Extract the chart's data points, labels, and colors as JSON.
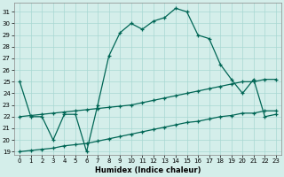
{
  "xlabel": "Humidex (Indice chaleur)",
  "background_color": "#d4eeea",
  "grid_color": "#a8d8d2",
  "line_color": "#006655",
  "xlim": [
    -0.5,
    23.5
  ],
  "ylim": [
    18.7,
    31.8
  ],
  "yticks": [
    19,
    20,
    21,
    22,
    23,
    24,
    25,
    26,
    27,
    28,
    29,
    30,
    31
  ],
  "xticks": [
    0,
    1,
    2,
    3,
    4,
    5,
    6,
    7,
    8,
    9,
    10,
    11,
    12,
    13,
    14,
    15,
    16,
    17,
    18,
    19,
    20,
    21,
    22,
    23
  ],
  "main_line": [
    25.0,
    22.0,
    22.0,
    20.0,
    22.2,
    22.2,
    19.0,
    23.0,
    27.2,
    29.2,
    30.0,
    29.5,
    30.2,
    30.5,
    31.3,
    31.0,
    29.0,
    28.7,
    26.5,
    25.2,
    24.0,
    25.2,
    22.0,
    22.2
  ],
  "upper_line": [
    22.0,
    22.1,
    22.2,
    22.3,
    22.4,
    22.5,
    22.6,
    22.7,
    22.8,
    22.9,
    23.0,
    23.2,
    23.4,
    23.6,
    23.8,
    24.0,
    24.2,
    24.4,
    24.6,
    24.8,
    25.0,
    25.0,
    25.2,
    25.2
  ],
  "lower_line": [
    19.0,
    19.1,
    19.2,
    19.3,
    19.5,
    19.6,
    19.7,
    19.9,
    20.1,
    20.3,
    20.5,
    20.7,
    20.9,
    21.1,
    21.3,
    21.5,
    21.6,
    21.8,
    22.0,
    22.1,
    22.3,
    22.3,
    22.5,
    22.5
  ]
}
